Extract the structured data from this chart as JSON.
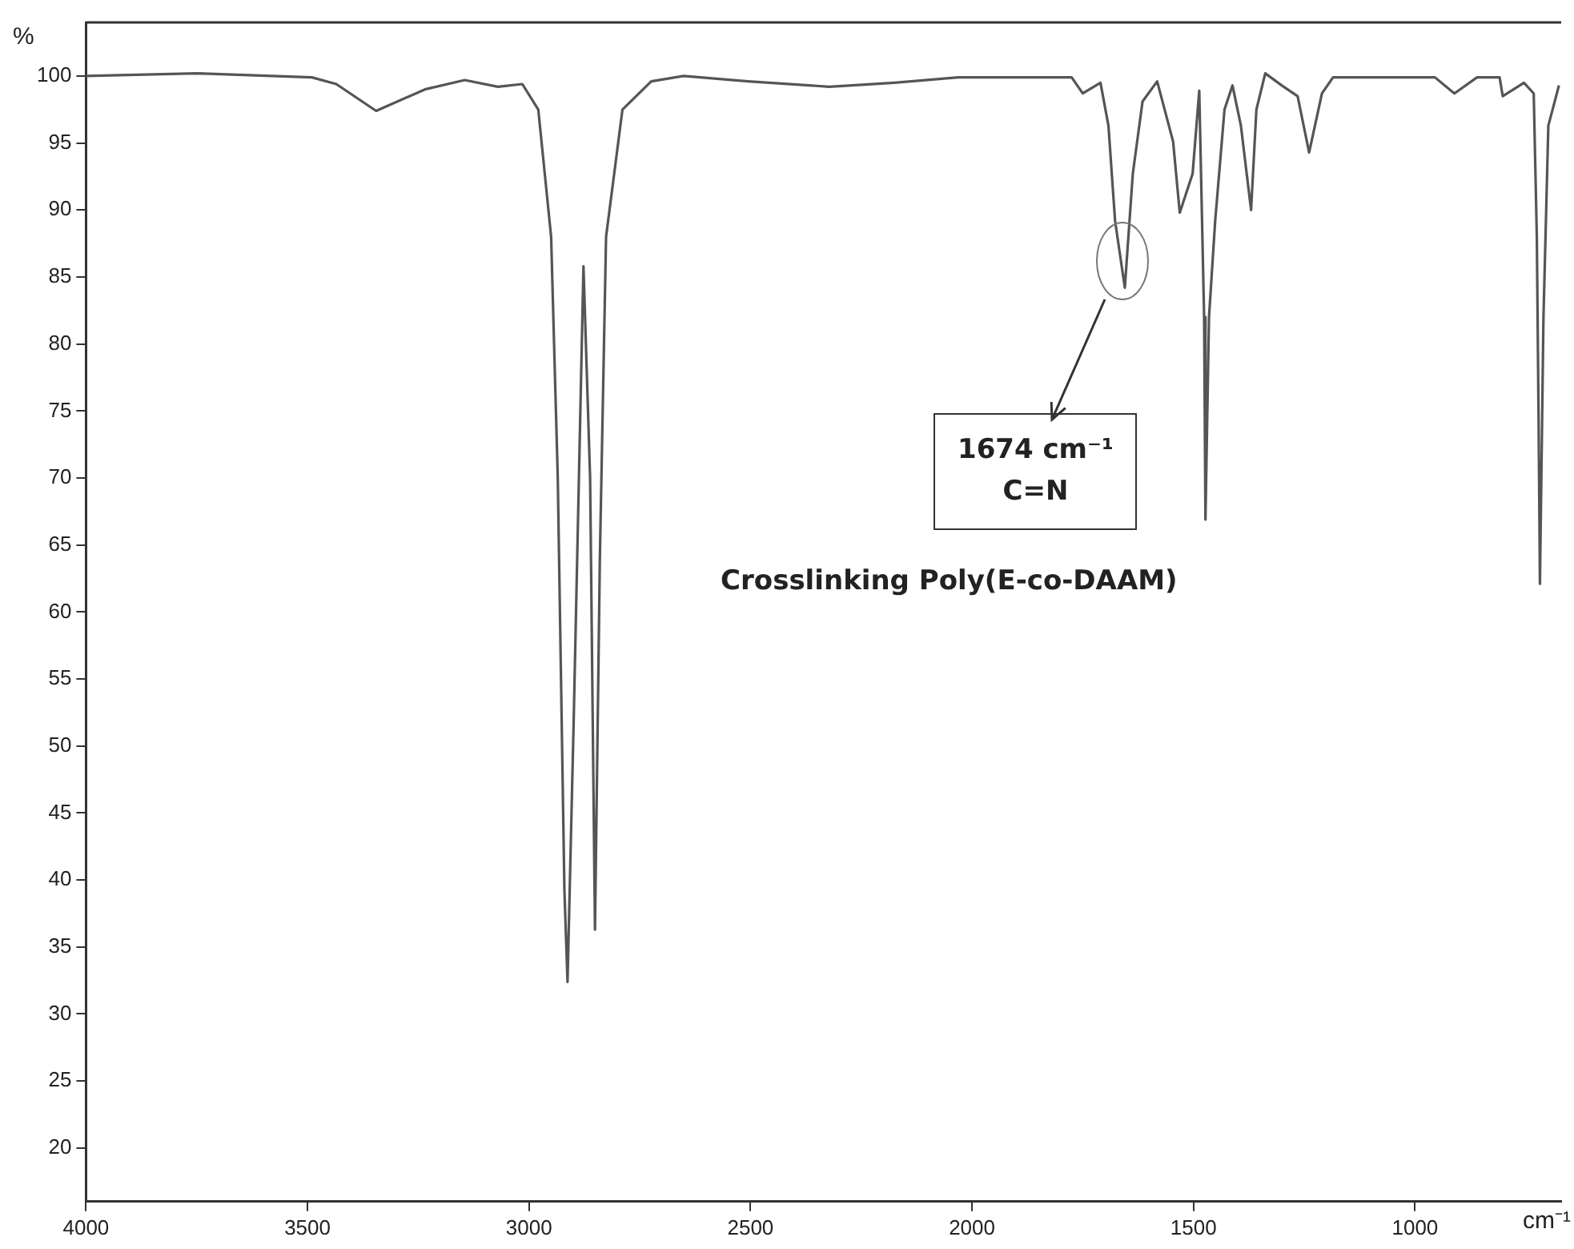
{
  "chart_data": {
    "type": "line",
    "title": "Crosslinking Poly(E-co-DAAM)",
    "xlabel": "cm⁻¹",
    "ylabel": "%",
    "xlim": [
      4000,
      670
    ],
    "ylim": [
      16,
      104
    ],
    "xticks": [
      4000,
      3500,
      3000,
      2500,
      2000,
      1500,
      1000
    ],
    "yticks": [
      20,
      25,
      30,
      35,
      40,
      45,
      50,
      55,
      60,
      65,
      70,
      75,
      80,
      85,
      90,
      95,
      100
    ],
    "grid": false,
    "legend": false,
    "marker": "none",
    "line_style": "solid",
    "annotations": [
      "1674 cm⁻¹\nC=N"
    ],
    "series": [
      {
        "color": "#555555",
        "x": [
          4000,
          3750,
          3490,
          3435,
          3345,
          3235,
          3145,
          3070,
          3015,
          2979,
          2950,
          2935,
          2920,
          2913,
          2899,
          2877,
          2862,
          2851,
          2840,
          2826,
          2789,
          2724,
          2651,
          2505,
          2322,
          2176,
          2031,
          1775,
          1750,
          1710,
          1692,
          1677,
          1655,
          1637,
          1615,
          1582,
          1546,
          1531,
          1502,
          1487,
          1476,
          1473,
          1465,
          1451,
          1430,
          1412,
          1393,
          1370,
          1358,
          1338,
          1301,
          1265,
          1239,
          1210,
          1185,
          1119,
          955,
          911,
          860,
          809,
          802,
          754,
          732,
          725,
          721,
          718,
          710,
          699,
          675
        ],
        "values": [
          100,
          100.2,
          99.9,
          99.4,
          97.4,
          99,
          99.7,
          99.2,
          99.4,
          97.5,
          88,
          70,
          39.2,
          32.4,
          52,
          85.8,
          70,
          36.3,
          64,
          88,
          97.5,
          99.6,
          100,
          99.6,
          99.2,
          99.5,
          99.9,
          99.9,
          98.7,
          99.5,
          96.3,
          89.2,
          84.2,
          92.7,
          98.1,
          99.6,
          95.1,
          89.8,
          92.7,
          98.9,
          82,
          66.9,
          82,
          89.2,
          97.5,
          99.3,
          96.3,
          90,
          97.5,
          100.2,
          99.3,
          98.5,
          94.3,
          98.7,
          99.9,
          99.9,
          99.9,
          98.7,
          99.9,
          99.9,
          98.5,
          99.5,
          98.7,
          88,
          74.3,
          62.1,
          82,
          96.3,
          99.3
        ]
      }
    ]
  }
}
